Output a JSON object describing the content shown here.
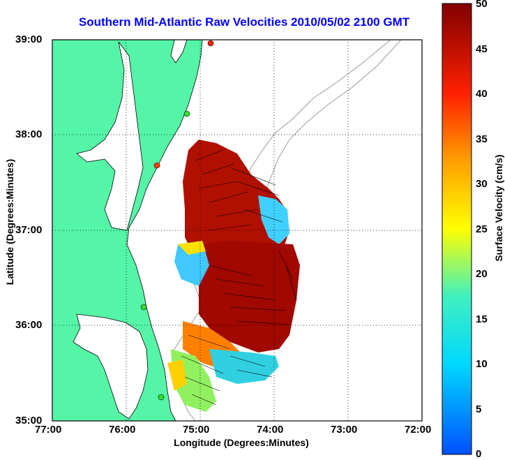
{
  "title": "Southern Mid-Atlantic Raw Velocities 2010/05/02 2100 GMT",
  "xlabel": "Longitude (Degrees:Minutes)",
  "ylabel": "Latitude (Degrees:Minutes)",
  "colorbar": {
    "label": "Surface Velocity (cm/s)",
    "ticks": [
      "0",
      "5",
      "10",
      "15",
      "20",
      "25",
      "30",
      "35",
      "40",
      "45",
      "50"
    ],
    "range": [
      0,
      50
    ]
  },
  "x_ticks": [
    "77:00",
    "76:00",
    "75:00",
    "74:00",
    "73:00",
    "72:00"
  ],
  "y_ticks": [
    "39:00",
    "38:00",
    "37:00",
    "36:00",
    "35:00"
  ],
  "colors": {
    "land": "#55f5a8",
    "title": "#0000ff",
    "coast": "#000000",
    "bathymetry": "#9a9a9a"
  }
}
